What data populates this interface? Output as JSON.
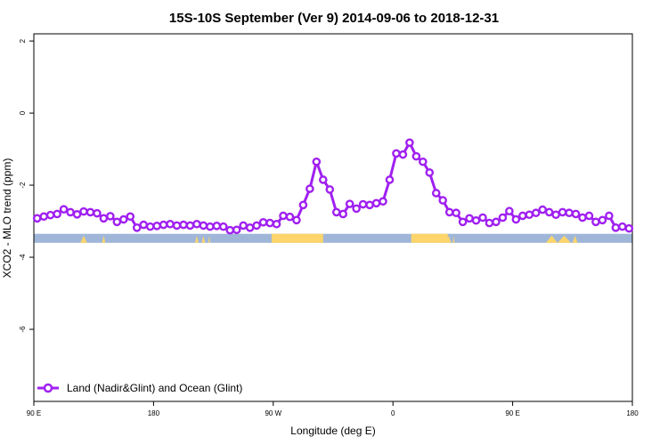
{
  "colors": {
    "series": "#a020f0",
    "ocean": "#9fb6d8",
    "land": "#fcd56b",
    "background": "#ffffff",
    "axis": "#000000"
  },
  "chart_data": {
    "type": "line",
    "title": "15S-10S September (Ver 9)   2014-09-06 to 2018-12-31",
    "xlabel": "Longitude (deg E)",
    "ylabel": "XCO2 - MLO trend (ppm)",
    "xlim": [
      90,
      450
    ],
    "ylim": [
      -8,
      2.2
    ],
    "xticks": [
      {
        "value": 90,
        "label": "90 E"
      },
      {
        "value": 162,
        "label": "180"
      },
      {
        "value": 234,
        "label": "90 W"
      },
      {
        "value": 306,
        "label": "0"
      },
      {
        "value": 378,
        "label": "90 E"
      },
      {
        "value": 450,
        "label": "180"
      }
    ],
    "yticks": [
      {
        "value": 2,
        "label": "2"
      },
      {
        "value": 0,
        "label": "0"
      },
      {
        "value": -2,
        "label": "-2"
      },
      {
        "value": -4,
        "label": "-4"
      },
      {
        "value": -6,
        "label": "-6"
      }
    ],
    "grid": false,
    "legend_position": "bottom-left",
    "series": [
      {
        "name": "Land (Nadir&Glint) and Ocean (Glint)",
        "x": [
          92,
          96,
          100,
          104,
          108,
          112,
          116,
          120,
          124,
          128,
          132,
          136,
          140,
          144,
          148,
          152,
          156,
          160,
          164,
          168,
          172,
          176,
          180,
          184,
          188,
          192,
          196,
          200,
          204,
          208,
          212,
          216,
          220,
          224,
          228,
          232,
          236,
          240,
          244,
          248,
          252,
          256,
          260,
          264,
          268,
          272,
          276,
          280,
          284,
          288,
          292,
          296,
          300,
          304,
          308,
          312,
          316,
          320,
          324,
          328,
          332,
          336,
          340,
          344,
          348,
          352,
          356,
          360,
          364,
          368,
          372,
          376,
          380,
          384,
          388,
          392,
          396,
          400,
          404,
          408,
          412,
          416,
          420,
          424,
          428,
          432,
          436,
          440,
          444,
          448
        ],
        "values": [
          -2.92,
          -2.87,
          -2.83,
          -2.8,
          -2.67,
          -2.75,
          -2.81,
          -2.73,
          -2.75,
          -2.78,
          -2.92,
          -2.86,
          -3.02,
          -2.95,
          -2.87,
          -3.18,
          -3.1,
          -3.15,
          -3.13,
          -3.1,
          -3.08,
          -3.12,
          -3.1,
          -3.12,
          -3.08,
          -3.12,
          -3.15,
          -3.13,
          -3.15,
          -3.25,
          -3.24,
          -3.12,
          -3.18,
          -3.12,
          -3.03,
          -3.05,
          -3.08,
          -2.85,
          -2.88,
          -2.97,
          -2.55,
          -2.1,
          -1.35,
          -1.85,
          -2.12,
          -2.75,
          -2.8,
          -2.52,
          -2.65,
          -2.53,
          -2.55,
          -2.5,
          -2.45,
          -1.85,
          -1.12,
          -1.15,
          -0.82,
          -1.2,
          -1.35,
          -1.65,
          -2.22,
          -2.42,
          -2.75,
          -2.77,
          -3.02,
          -2.92,
          -2.98,
          -2.9,
          -3.05,
          -3.02,
          -2.9,
          -2.72,
          -2.95,
          -2.85,
          -2.82,
          -2.77,
          -2.68,
          -2.75,
          -2.82,
          -2.75,
          -2.77,
          -2.8,
          -2.9,
          -2.85,
          -3.02,
          -2.97,
          -2.85,
          -3.18,
          -3.15,
          -3.2
        ]
      }
    ],
    "surface_strip": {
      "y_range": [
        -3.6,
        -3.35
      ],
      "land_spans": [
        [
          233,
          263
        ],
        [
          263,
          264
        ],
        [
          317,
          339
        ]
      ],
      "land_bumps": [
        [
          118,
          122
        ],
        [
          131,
          133
        ],
        [
          338,
          341
        ],
        [
          191,
          193
        ],
        [
          187,
          189
        ],
        [
          195,
          196
        ],
        [
          342,
          343
        ],
        [
          398,
          405
        ],
        [
          405,
          413
        ],
        [
          414,
          417
        ]
      ]
    }
  }
}
